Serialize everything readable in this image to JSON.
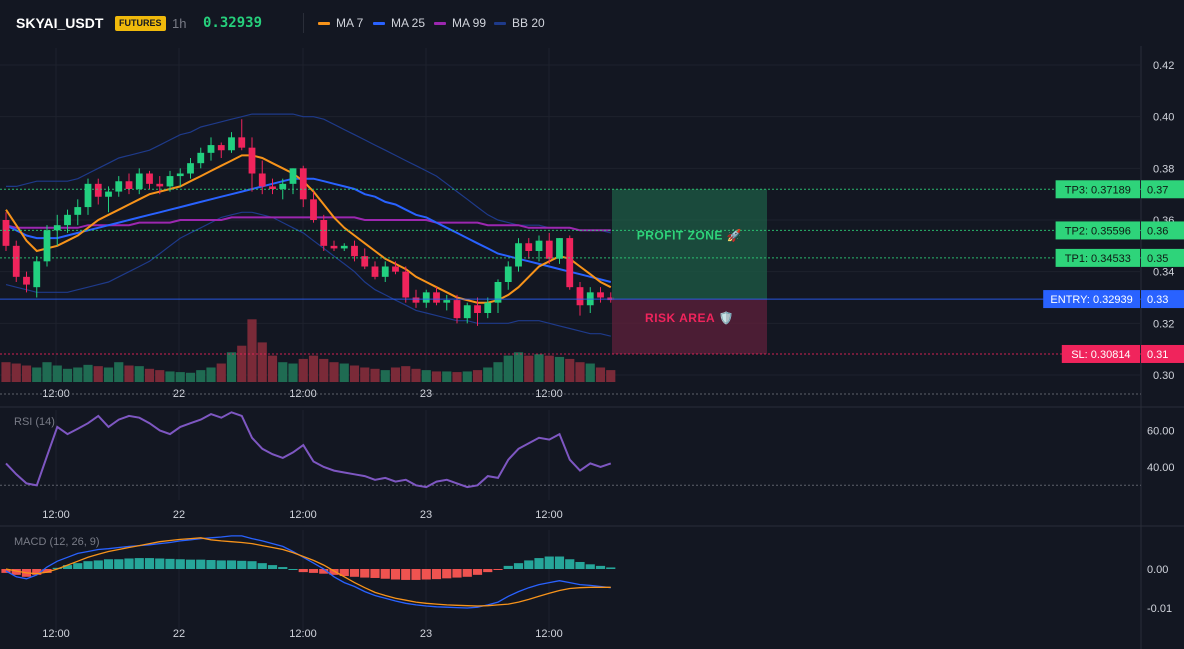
{
  "header": {
    "symbol": "SKYAI_USDT",
    "badge": "FUTURES",
    "timeframe": "1h",
    "last_price": "0.32939",
    "legend": [
      {
        "label": "MA 7",
        "color": "#f7931a"
      },
      {
        "label": "MA 25",
        "color": "#2962ff"
      },
      {
        "label": "MA 99",
        "color": "#9c27b0"
      },
      {
        "label": "BB 20",
        "color": "#1e3a8a"
      }
    ]
  },
  "colors": {
    "background": "#131722",
    "up": "#22d080",
    "down": "#f0245c",
    "grid": "#1e222d",
    "entry": "#2962ff",
    "tp": "#2ed47a",
    "sl": "#f0245c"
  },
  "xaxis": {
    "labels": [
      "12:00",
      "22",
      "12:00",
      "23",
      "12:00"
    ]
  },
  "chart_data": [
    {
      "name": "price",
      "type": "candlestick",
      "y_ticks": [
        "0.42",
        "0.40",
        "0.38",
        "0.36",
        "0.34",
        "0.32",
        "0.30"
      ],
      "ylim": [
        0.3,
        0.42
      ],
      "candles": [
        [
          0.36,
          0.363,
          0.348,
          0.35
        ],
        [
          0.35,
          0.352,
          0.336,
          0.338
        ],
        [
          0.338,
          0.34,
          0.332,
          0.335
        ],
        [
          0.334,
          0.346,
          0.33,
          0.344
        ],
        [
          0.344,
          0.358,
          0.342,
          0.356
        ],
        [
          0.356,
          0.362,
          0.35,
          0.358
        ],
        [
          0.358,
          0.364,
          0.355,
          0.362
        ],
        [
          0.362,
          0.368,
          0.358,
          0.365
        ],
        [
          0.365,
          0.376,
          0.362,
          0.374
        ],
        [
          0.374,
          0.376,
          0.366,
          0.369
        ],
        [
          0.369,
          0.373,
          0.363,
          0.371
        ],
        [
          0.371,
          0.377,
          0.369,
          0.375
        ],
        [
          0.375,
          0.378,
          0.37,
          0.372
        ],
        [
          0.372,
          0.38,
          0.37,
          0.378
        ],
        [
          0.378,
          0.379,
          0.372,
          0.374
        ],
        [
          0.374,
          0.377,
          0.37,
          0.373
        ],
        [
          0.373,
          0.379,
          0.371,
          0.377
        ],
        [
          0.377,
          0.38,
          0.373,
          0.378
        ],
        [
          0.378,
          0.384,
          0.376,
          0.382
        ],
        [
          0.382,
          0.388,
          0.38,
          0.386
        ],
        [
          0.386,
          0.392,
          0.383,
          0.389
        ],
        [
          0.389,
          0.39,
          0.384,
          0.387
        ],
        [
          0.387,
          0.394,
          0.386,
          0.392
        ],
        [
          0.392,
          0.399,
          0.387,
          0.388
        ],
        [
          0.388,
          0.392,
          0.371,
          0.378
        ],
        [
          0.378,
          0.383,
          0.37,
          0.373
        ],
        [
          0.373,
          0.376,
          0.37,
          0.372
        ],
        [
          0.372,
          0.376,
          0.368,
          0.374
        ],
        [
          0.374,
          0.38,
          0.37,
          0.38
        ],
        [
          0.38,
          0.381,
          0.365,
          0.368
        ],
        [
          0.368,
          0.371,
          0.359,
          0.36
        ],
        [
          0.36,
          0.362,
          0.348,
          0.35
        ],
        [
          0.35,
          0.352,
          0.348,
          0.349
        ],
        [
          0.349,
          0.351,
          0.348,
          0.35
        ],
        [
          0.35,
          0.352,
          0.344,
          0.346
        ],
        [
          0.346,
          0.349,
          0.341,
          0.342
        ],
        [
          0.342,
          0.344,
          0.337,
          0.338
        ],
        [
          0.338,
          0.344,
          0.336,
          0.342
        ],
        [
          0.342,
          0.344,
          0.339,
          0.34
        ],
        [
          0.34,
          0.342,
          0.328,
          0.33
        ],
        [
          0.33,
          0.333,
          0.326,
          0.328
        ],
        [
          0.328,
          0.333,
          0.326,
          0.332
        ],
        [
          0.332,
          0.334,
          0.327,
          0.328
        ],
        [
          0.328,
          0.331,
          0.325,
          0.329
        ],
        [
          0.329,
          0.331,
          0.32,
          0.322
        ],
        [
          0.322,
          0.328,
          0.32,
          0.327
        ],
        [
          0.327,
          0.33,
          0.319,
          0.324
        ],
        [
          0.324,
          0.33,
          0.322,
          0.328
        ],
        [
          0.328,
          0.337,
          0.324,
          0.336
        ],
        [
          0.336,
          0.344,
          0.333,
          0.342
        ],
        [
          0.342,
          0.353,
          0.34,
          0.351
        ],
        [
          0.351,
          0.353,
          0.345,
          0.348
        ],
        [
          0.348,
          0.354,
          0.344,
          0.352
        ],
        [
          0.352,
          0.355,
          0.343,
          0.345
        ],
        [
          0.345,
          0.353,
          0.343,
          0.353
        ],
        [
          0.353,
          0.354,
          0.333,
          0.334
        ],
        [
          0.334,
          0.336,
          0.323,
          0.327
        ],
        [
          0.327,
          0.334,
          0.324,
          0.332
        ],
        [
          0.332,
          0.334,
          0.328,
          0.33
        ],
        [
          0.33,
          0.332,
          0.328,
          0.329
        ]
      ],
      "ma7": [
        0.364,
        0.358,
        0.352,
        0.348,
        0.349,
        0.35,
        0.352,
        0.354,
        0.357,
        0.36,
        0.362,
        0.364,
        0.366,
        0.368,
        0.37,
        0.371,
        0.372,
        0.373,
        0.375,
        0.377,
        0.379,
        0.381,
        0.383,
        0.385,
        0.385,
        0.384,
        0.382,
        0.38,
        0.378,
        0.375,
        0.371,
        0.366,
        0.361,
        0.357,
        0.354,
        0.351,
        0.348,
        0.345,
        0.343,
        0.341,
        0.338,
        0.336,
        0.334,
        0.332,
        0.33,
        0.329,
        0.328,
        0.328,
        0.329,
        0.331,
        0.334,
        0.338,
        0.342,
        0.344,
        0.346,
        0.345,
        0.342,
        0.339,
        0.336,
        0.334
      ],
      "ma25": [
        0.358,
        0.356,
        0.354,
        0.353,
        0.353,
        0.353,
        0.354,
        0.355,
        0.356,
        0.357,
        0.358,
        0.359,
        0.36,
        0.361,
        0.362,
        0.363,
        0.364,
        0.365,
        0.366,
        0.367,
        0.368,
        0.369,
        0.37,
        0.371,
        0.372,
        0.373,
        0.374,
        0.375,
        0.376,
        0.376,
        0.376,
        0.375,
        0.374,
        0.373,
        0.372,
        0.37,
        0.369,
        0.367,
        0.366,
        0.364,
        0.362,
        0.361,
        0.359,
        0.357,
        0.355,
        0.353,
        0.351,
        0.349,
        0.347,
        0.346,
        0.345,
        0.344,
        0.343,
        0.342,
        0.341,
        0.34,
        0.339,
        0.338,
        0.337,
        0.336
      ],
      "ma99": [
        0.358,
        0.357,
        0.357,
        0.357,
        0.357,
        0.357,
        0.357,
        0.357,
        0.358,
        0.358,
        0.358,
        0.358,
        0.358,
        0.359,
        0.359,
        0.359,
        0.359,
        0.36,
        0.36,
        0.36,
        0.36,
        0.36,
        0.361,
        0.361,
        0.361,
        0.361,
        0.361,
        0.361,
        0.361,
        0.361,
        0.361,
        0.361,
        0.361,
        0.361,
        0.361,
        0.36,
        0.36,
        0.36,
        0.36,
        0.36,
        0.36,
        0.36,
        0.359,
        0.359,
        0.359,
        0.359,
        0.359,
        0.358,
        0.358,
        0.358,
        0.358,
        0.357,
        0.357,
        0.357,
        0.357,
        0.357,
        0.356,
        0.356,
        0.356,
        0.356
      ],
      "bb_upper": [
        0.373,
        0.373,
        0.374,
        0.375,
        0.375,
        0.375,
        0.375,
        0.376,
        0.378,
        0.38,
        0.382,
        0.384,
        0.385,
        0.386,
        0.387,
        0.389,
        0.391,
        0.393,
        0.394,
        0.396,
        0.397,
        0.398,
        0.399,
        0.4,
        0.401,
        0.401,
        0.401,
        0.401,
        0.401,
        0.4,
        0.4,
        0.399,
        0.397,
        0.395,
        0.393,
        0.391,
        0.389,
        0.387,
        0.385,
        0.383,
        0.381,
        0.379,
        0.377,
        0.374,
        0.371,
        0.368,
        0.365,
        0.362,
        0.36,
        0.359,
        0.358,
        0.358,
        0.358,
        0.357,
        0.357,
        0.357,
        0.356,
        0.356,
        0.356,
        0.355
      ],
      "bb_lower": [
        0.335,
        0.334,
        0.333,
        0.332,
        0.332,
        0.332,
        0.332,
        0.333,
        0.334,
        0.335,
        0.336,
        0.338,
        0.34,
        0.342,
        0.344,
        0.347,
        0.35,
        0.353,
        0.355,
        0.357,
        0.359,
        0.361,
        0.362,
        0.363,
        0.363,
        0.362,
        0.361,
        0.359,
        0.357,
        0.355,
        0.352,
        0.349,
        0.346,
        0.343,
        0.34,
        0.336,
        0.333,
        0.331,
        0.329,
        0.327,
        0.325,
        0.324,
        0.323,
        0.322,
        0.321,
        0.321,
        0.32,
        0.32,
        0.32,
        0.32,
        0.321,
        0.321,
        0.321,
        0.32,
        0.319,
        0.318,
        0.317,
        0.316,
        0.316,
        0.315
      ],
      "volume": [
        0.3,
        0.28,
        0.25,
        0.22,
        0.3,
        0.25,
        0.2,
        0.22,
        0.26,
        0.24,
        0.22,
        0.3,
        0.25,
        0.24,
        0.2,
        0.18,
        0.16,
        0.15,
        0.14,
        0.18,
        0.22,
        0.28,
        0.45,
        0.55,
        0.95,
        0.6,
        0.4,
        0.3,
        0.28,
        0.35,
        0.4,
        0.35,
        0.3,
        0.28,
        0.25,
        0.22,
        0.2,
        0.18,
        0.22,
        0.24,
        0.2,
        0.18,
        0.16,
        0.16,
        0.15,
        0.16,
        0.18,
        0.22,
        0.3,
        0.4,
        0.45,
        0.4,
        0.42,
        0.4,
        0.38,
        0.35,
        0.3,
        0.28,
        0.22,
        0.18
      ]
    },
    {
      "name": "rsi",
      "type": "line",
      "label": "RSI (14)",
      "y_ticks": [
        "60.00",
        "40.00"
      ],
      "ylim": [
        20,
        82
      ],
      "levels": [
        30,
        80
      ],
      "values": [
        42,
        36,
        31,
        30,
        46,
        62,
        58,
        61,
        64,
        68,
        62,
        66,
        68,
        67,
        64,
        60,
        58,
        62,
        64,
        66,
        69,
        67,
        70,
        68,
        56,
        50,
        47,
        45,
        48,
        52,
        43,
        40,
        38,
        37,
        36,
        35,
        33,
        34,
        32,
        33,
        30,
        29,
        32,
        33,
        31,
        29,
        30,
        35,
        34,
        44,
        50,
        53,
        56,
        55,
        58,
        44,
        38,
        42,
        40,
        42
      ]
    },
    {
      "name": "macd",
      "type": "histogram+line",
      "label": "MACD (12, 26, 9)",
      "y_ticks": [
        "0.00",
        "-0.01"
      ],
      "ylim": [
        -0.0125,
        0.0125
      ],
      "histogram": [
        -0.001,
        -0.0015,
        -0.002,
        -0.0015,
        -0.001,
        0.0003,
        0.001,
        0.0015,
        0.002,
        0.0022,
        0.0025,
        0.0025,
        0.0027,
        0.0028,
        0.0028,
        0.0027,
        0.0026,
        0.0025,
        0.0024,
        0.0024,
        0.0023,
        0.0022,
        0.0022,
        0.0021,
        0.002,
        0.0015,
        0.001,
        0.0005,
        0.0,
        -0.0008,
        -0.001,
        -0.0012,
        -0.0015,
        -0.0018,
        -0.002,
        -0.0022,
        -0.0023,
        -0.0025,
        -0.0027,
        -0.0028,
        -0.0028,
        -0.0027,
        -0.0026,
        -0.0024,
        -0.0022,
        -0.002,
        -0.0015,
        -0.0008,
        -0.0002,
        0.0008,
        0.0015,
        0.0022,
        0.0028,
        0.0032,
        0.0032,
        0.0025,
        0.0018,
        0.0012,
        0.0008,
        0.0004
      ],
      "macd_line": [
        -0.0005,
        -0.002,
        -0.0025,
        -0.0015,
        0.0005,
        0.002,
        0.003,
        0.004,
        0.0045,
        0.005,
        0.0052,
        0.0055,
        0.0058,
        0.006,
        0.0062,
        0.0065,
        0.0068,
        0.0072,
        0.0075,
        0.0078,
        0.008,
        0.0082,
        0.0085,
        0.0085,
        0.0078,
        0.0072,
        0.0065,
        0.0058,
        0.0045,
        0.003,
        0.0015,
        0.0,
        -0.002,
        -0.0035,
        -0.0045,
        -0.0058,
        -0.0068,
        -0.0075,
        -0.0082,
        -0.0088,
        -0.0092,
        -0.0095,
        -0.0097,
        -0.0098,
        -0.0099,
        -0.01,
        -0.0098,
        -0.0092,
        -0.0085,
        -0.007,
        -0.0058,
        -0.0048,
        -0.004,
        -0.0035,
        -0.003,
        -0.0035,
        -0.004,
        -0.0042,
        -0.0045,
        -0.0048
      ],
      "signal_line": [
        0.0,
        -0.0005,
        -0.001,
        -0.0012,
        -0.0008,
        0.0,
        0.001,
        0.002,
        0.003,
        0.0038,
        0.0045,
        0.005,
        0.0055,
        0.006,
        0.0065,
        0.007,
        0.0073,
        0.0076,
        0.0078,
        0.008,
        0.0075,
        0.0072,
        0.007,
        0.0068,
        0.0065,
        0.006,
        0.0055,
        0.005,
        0.0042,
        0.0032,
        0.0022,
        0.001,
        -0.0005,
        -0.002,
        -0.0035,
        -0.0048,
        -0.006,
        -0.0068,
        -0.0075,
        -0.008,
        -0.0085,
        -0.0088,
        -0.009,
        -0.0092,
        -0.0093,
        -0.0094,
        -0.0095,
        -0.0094,
        -0.0092,
        -0.009,
        -0.0085,
        -0.0078,
        -0.007,
        -0.0062,
        -0.0055,
        -0.005,
        -0.0048,
        -0.0047,
        -0.0047,
        -0.0047
      ]
    }
  ],
  "trade_levels": {
    "entry": {
      "label": "ENTRY: 0.32939",
      "price": 0.32939,
      "axis": "0.33"
    },
    "tp1": {
      "label": "TP1: 0.34533",
      "price": 0.34533,
      "axis": "0.35"
    },
    "tp2": {
      "label": "TP2: 0.35596",
      "price": 0.35596,
      "axis": "0.36"
    },
    "tp3": {
      "label": "TP3: 0.37189",
      "price": 0.37189,
      "axis": "0.37"
    },
    "sl": {
      "label": "SL: 0.30814",
      "price": 0.30814,
      "axis": "0.31"
    }
  },
  "zones": {
    "profit": {
      "label": "PROFIT ZONE 🚀"
    },
    "risk": {
      "label": "RISK AREA 🛡️"
    }
  }
}
